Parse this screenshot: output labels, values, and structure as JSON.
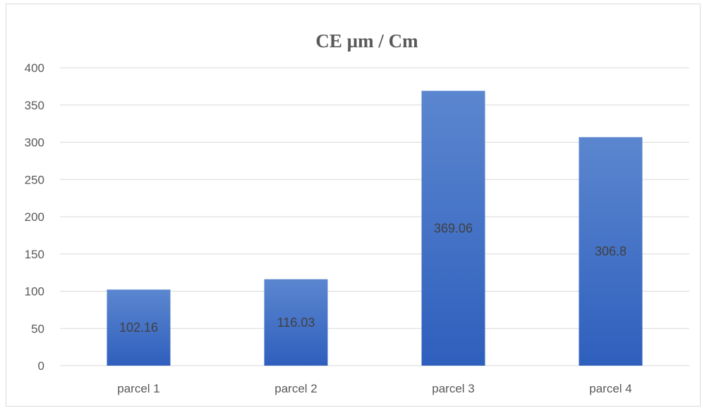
{
  "chart_data": {
    "type": "bar",
    "title": "CE µm / Cm",
    "categories": [
      "parcel 1",
      "parcel 2",
      "parcel 3",
      "parcel 4"
    ],
    "values": [
      102.16,
      116.03,
      369.06,
      306.8
    ],
    "data_labels": [
      "102.16",
      "116.03",
      "369.06",
      "306.8"
    ],
    "ylim": [
      0,
      400
    ],
    "yticks": [
      0,
      50,
      100,
      150,
      200,
      250,
      300,
      350,
      400
    ],
    "grid": true,
    "legend": "none",
    "colors": {
      "bar_top": "#5b86cf",
      "bar_bottom": "#2f5fbd",
      "grid": "#d9d9d9",
      "text": "#595959"
    }
  }
}
